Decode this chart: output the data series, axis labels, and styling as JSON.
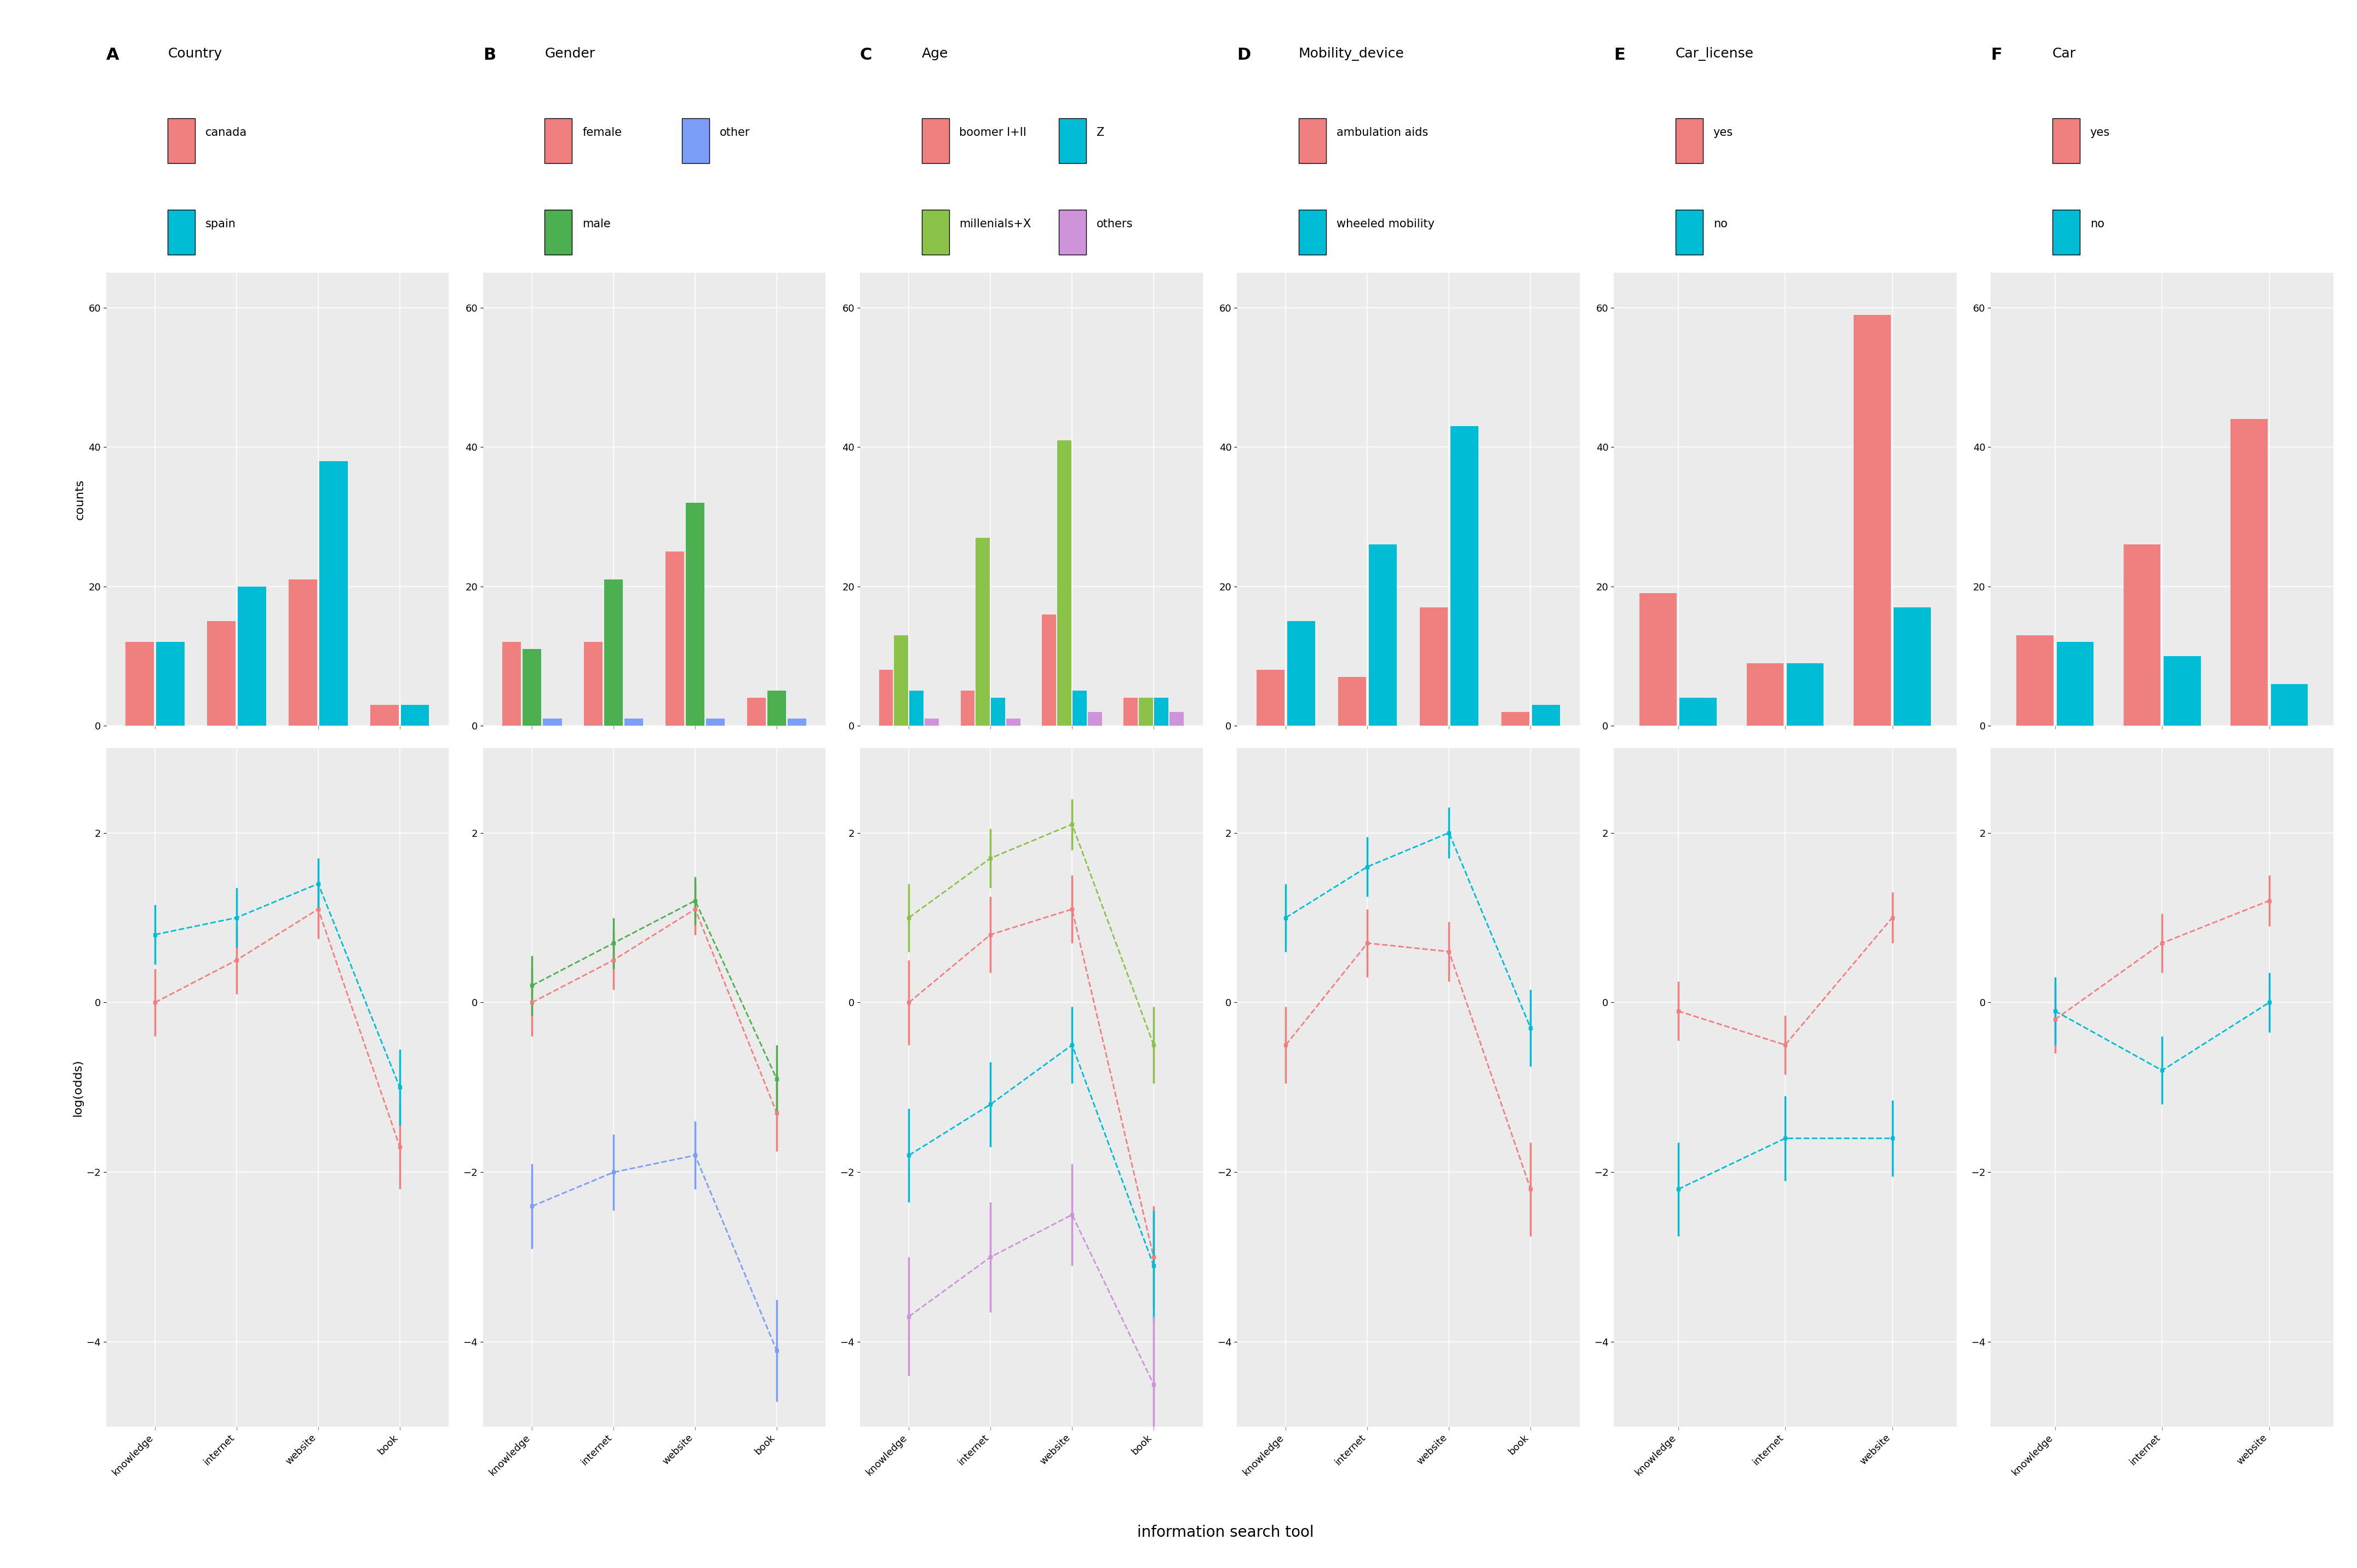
{
  "panel_labels": [
    "A",
    "B",
    "C",
    "D",
    "E",
    "F"
  ],
  "panel_titles": [
    "Country",
    "Gender",
    "Age",
    "Mobility_device",
    "Car_license",
    "Car"
  ],
  "xlabel": "information search tool",
  "ylabel_top": "counts",
  "ylabel_bottom": "log(odds)",
  "bg_color": "#ebebeb",
  "fig_bg": "#ffffff",
  "bar_data": {
    "A": {
      "categories": [
        "knowledge",
        "internet",
        "website",
        "book"
      ],
      "series": [
        {
          "label": "canada",
          "color": "#f08080",
          "values": [
            12,
            15,
            21,
            3
          ]
        },
        {
          "label": "spain",
          "color": "#00bcd4",
          "values": [
            12,
            20,
            38,
            3
          ]
        }
      ]
    },
    "B": {
      "categories": [
        "knowledge",
        "internet",
        "website",
        "book"
      ],
      "series": [
        {
          "label": "female",
          "color": "#f08080",
          "values": [
            12,
            12,
            25,
            4
          ]
        },
        {
          "label": "male",
          "color": "#4caf50",
          "values": [
            11,
            21,
            32,
            5
          ]
        },
        {
          "label": "other",
          "color": "#7b9ff9",
          "values": [
            1,
            1,
            1,
            1
          ]
        }
      ]
    },
    "C": {
      "categories": [
        "knowledge",
        "internet",
        "website",
        "book"
      ],
      "series": [
        {
          "label": "boomer I+II",
          "color": "#f08080",
          "values": [
            8,
            5,
            16,
            4
          ]
        },
        {
          "label": "millenials+X",
          "color": "#8bc34a",
          "values": [
            13,
            27,
            41,
            4
          ]
        },
        {
          "label": "Z",
          "color": "#00bcd4",
          "values": [
            5,
            4,
            5,
            4
          ]
        },
        {
          "label": "others",
          "color": "#ce93d8",
          "values": [
            1,
            1,
            2,
            2
          ]
        }
      ]
    },
    "D": {
      "categories": [
        "knowledge",
        "internet",
        "website",
        "book"
      ],
      "series": [
        {
          "label": "ambulation aids",
          "color": "#f08080",
          "values": [
            8,
            7,
            17,
            2
          ]
        },
        {
          "label": "wheeled mobility",
          "color": "#00bcd4",
          "values": [
            15,
            26,
            43,
            3
          ]
        }
      ]
    },
    "E": {
      "categories": [
        "knowledge",
        "internet",
        "website"
      ],
      "series": [
        {
          "label": "yes",
          "color": "#f08080",
          "values": [
            19,
            9,
            59
          ]
        },
        {
          "label": "no",
          "color": "#00bcd4",
          "values": [
            4,
            9,
            17
          ]
        }
      ]
    },
    "F": {
      "categories": [
        "knowledge",
        "internet",
        "website"
      ],
      "series": [
        {
          "label": "yes",
          "color": "#f08080",
          "values": [
            13,
            26,
            44
          ]
        },
        {
          "label": "no",
          "color": "#00bcd4",
          "values": [
            12,
            10,
            6
          ]
        }
      ]
    }
  },
  "line_data": {
    "A": {
      "series": [
        {
          "label": "canada",
          "color": "#f08080",
          "x": [
            0,
            1,
            2,
            3
          ],
          "y": [
            0.0,
            0.5,
            1.1,
            -1.7
          ],
          "yerr": [
            0.4,
            0.4,
            0.35,
            0.5
          ]
        },
        {
          "label": "spain",
          "color": "#00bcd4",
          "x": [
            0,
            1,
            2,
            3
          ],
          "y": [
            0.8,
            1.0,
            1.4,
            -1.0
          ],
          "yerr": [
            0.35,
            0.35,
            0.3,
            0.45
          ]
        }
      ],
      "ylim": [
        -5,
        3
      ],
      "yticks": [
        2,
        0,
        -2,
        -4
      ]
    },
    "B": {
      "series": [
        {
          "label": "female",
          "color": "#f08080",
          "x": [
            0,
            1,
            2,
            3
          ],
          "y": [
            0.0,
            0.5,
            1.1,
            -1.3
          ],
          "yerr": [
            0.4,
            0.35,
            0.3,
            0.45
          ]
        },
        {
          "label": "male",
          "color": "#4caf50",
          "x": [
            0,
            1,
            2,
            3
          ],
          "y": [
            0.2,
            0.7,
            1.2,
            -0.9
          ],
          "yerr": [
            0.35,
            0.3,
            0.28,
            0.4
          ]
        },
        {
          "label": "other",
          "color": "#7b9ff9",
          "x": [
            0,
            1,
            2,
            3
          ],
          "y": [
            -2.4,
            -2.0,
            -1.8,
            -4.1
          ],
          "yerr": [
            0.5,
            0.45,
            0.4,
            0.6
          ]
        }
      ],
      "ylim": [
        -5,
        3
      ],
      "yticks": [
        2,
        0,
        -2,
        -4
      ]
    },
    "C": {
      "series": [
        {
          "label": "boomer I+II",
          "color": "#f08080",
          "x": [
            0,
            1,
            2,
            3
          ],
          "y": [
            0.0,
            0.8,
            1.1,
            -3.0
          ],
          "yerr": [
            0.5,
            0.45,
            0.4,
            0.6
          ]
        },
        {
          "label": "millenials+X",
          "color": "#8bc34a",
          "x": [
            0,
            1,
            2,
            3
          ],
          "y": [
            1.0,
            1.7,
            2.1,
            -0.5
          ],
          "yerr": [
            0.4,
            0.35,
            0.3,
            0.45
          ]
        },
        {
          "label": "Z",
          "color": "#00bcd4",
          "x": [
            0,
            1,
            2,
            3
          ],
          "y": [
            -1.8,
            -1.2,
            -0.5,
            -3.1
          ],
          "yerr": [
            0.55,
            0.5,
            0.45,
            0.65
          ]
        },
        {
          "label": "others",
          "color": "#ce93d8",
          "x": [
            0,
            1,
            2,
            3
          ],
          "y": [
            -3.7,
            -3.0,
            -2.5,
            -4.5
          ],
          "yerr": [
            0.7,
            0.65,
            0.6,
            0.8
          ]
        }
      ],
      "ylim": [
        -5,
        3
      ],
      "yticks": [
        2,
        0,
        -2,
        -4
      ]
    },
    "D": {
      "series": [
        {
          "label": "ambulation aids",
          "color": "#f08080",
          "x": [
            0,
            1,
            2,
            3
          ],
          "y": [
            -0.5,
            0.7,
            0.6,
            -2.2
          ],
          "yerr": [
            0.45,
            0.4,
            0.35,
            0.55
          ]
        },
        {
          "label": "wheeled mobility",
          "color": "#00bcd4",
          "x": [
            0,
            1,
            2,
            3
          ],
          "y": [
            1.0,
            1.6,
            2.0,
            -0.3
          ],
          "yerr": [
            0.4,
            0.35,
            0.3,
            0.45
          ]
        }
      ],
      "ylim": [
        -5,
        3
      ],
      "yticks": [
        2,
        0,
        -2,
        -4
      ]
    },
    "E": {
      "series": [
        {
          "label": "yes",
          "color": "#f08080",
          "x": [
            0,
            1,
            2
          ],
          "y": [
            -0.1,
            -0.5,
            1.0
          ],
          "yerr": [
            0.35,
            0.35,
            0.3
          ]
        },
        {
          "label": "no",
          "color": "#00bcd4",
          "x": [
            0,
            1,
            2
          ],
          "y": [
            -2.2,
            -1.6,
            -1.6
          ],
          "yerr": [
            0.55,
            0.5,
            0.45
          ]
        }
      ],
      "ylim": [
        -5,
        3
      ],
      "yticks": [
        2,
        0,
        -2,
        -4
      ]
    },
    "F": {
      "series": [
        {
          "label": "yes",
          "color": "#f08080",
          "x": [
            0,
            1,
            2
          ],
          "y": [
            -0.2,
            0.7,
            1.2
          ],
          "yerr": [
            0.4,
            0.35,
            0.3
          ]
        },
        {
          "label": "no",
          "color": "#00bcd4",
          "x": [
            0,
            1,
            2
          ],
          "y": [
            -0.1,
            -0.8,
            0.0
          ],
          "yerr": [
            0.4,
            0.4,
            0.35
          ]
        }
      ],
      "ylim": [
        -5,
        3
      ],
      "yticks": [
        2,
        0,
        -2,
        -4
      ]
    }
  },
  "legend_data": {
    "A": [
      {
        "label": "canada",
        "color": "#f08080"
      },
      {
        "label": "spain",
        "color": "#00bcd4"
      }
    ],
    "B": [
      {
        "label": "female",
        "color": "#f08080"
      },
      {
        "label": "other",
        "color": "#7b9ff9"
      },
      {
        "label": "male",
        "color": "#4caf50"
      }
    ],
    "C": [
      {
        "label": "boomer I+II",
        "color": "#f08080"
      },
      {
        "label": "Z",
        "color": "#00bcd4"
      },
      {
        "label": "millenials+X",
        "color": "#8bc34a"
      },
      {
        "label": "others",
        "color": "#ce93d8"
      }
    ],
    "D": [
      {
        "label": "ambulation aids",
        "color": "#f08080"
      },
      {
        "label": "wheeled mobility",
        "color": "#00bcd4"
      }
    ],
    "E": [
      {
        "label": "yes",
        "color": "#f08080"
      },
      {
        "label": "no",
        "color": "#00bcd4"
      }
    ],
    "F": [
      {
        "label": "yes",
        "color": "#f08080"
      },
      {
        "label": "no",
        "color": "#00bcd4"
      }
    ]
  }
}
